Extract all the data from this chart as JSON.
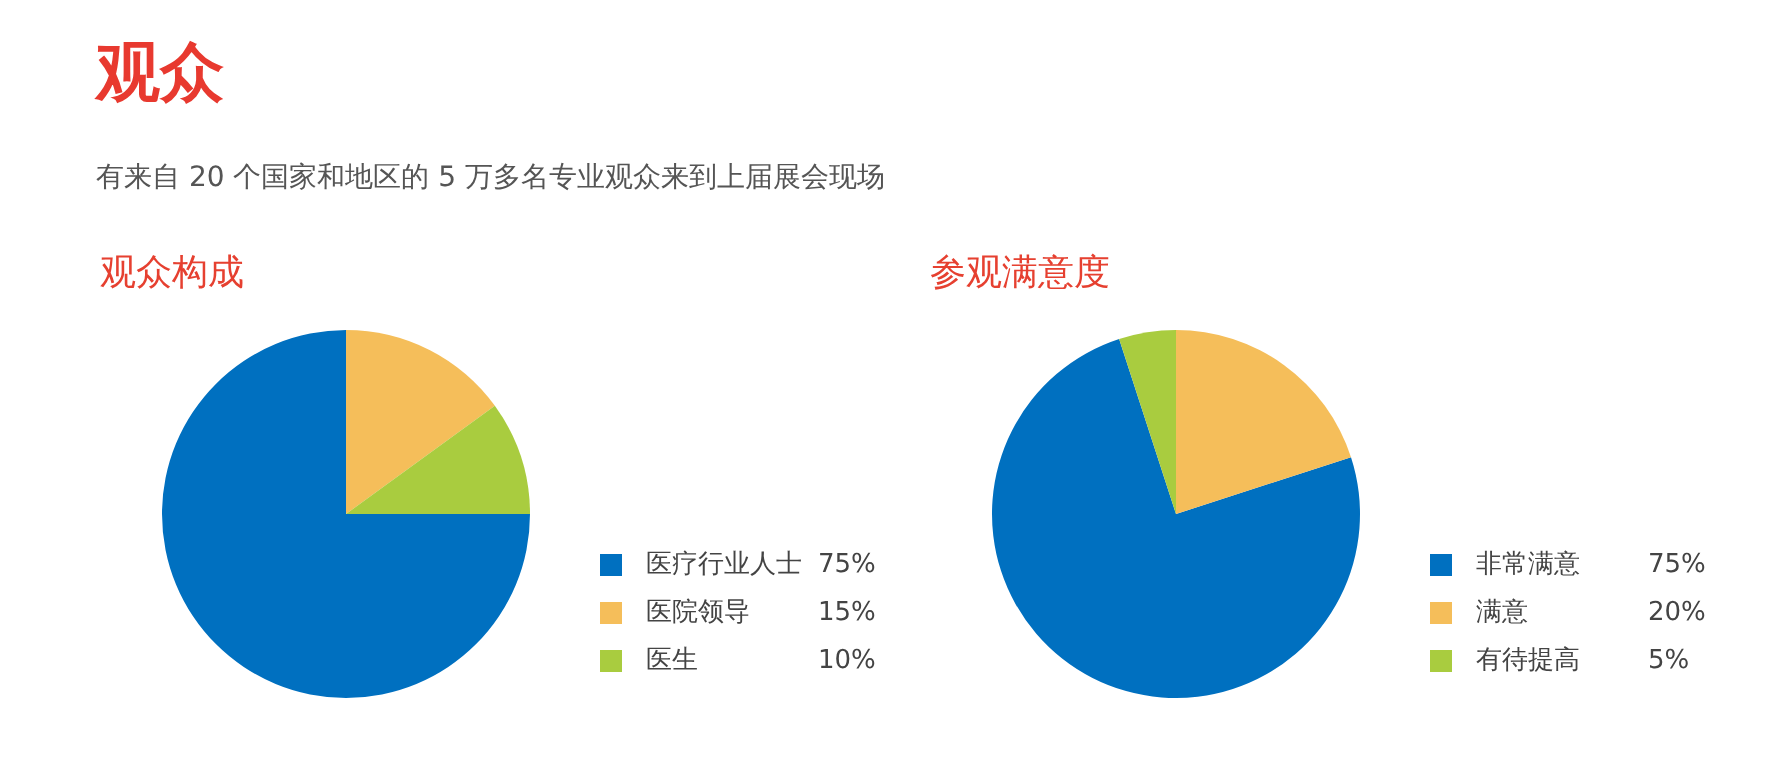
{
  "chart_data": [
    {
      "type": "other",
      "title": "观众",
      "subtitle": "有来自 20 个国家和地区的 5 万多名专业观众来到上届展会现场"
    },
    {
      "type": "pie",
      "title": "观众构成",
      "categories": [
        "医疗行业人士",
        "医院领导",
        "医生"
      ],
      "values": [
        75,
        15,
        10
      ],
      "value_labels": [
        "75%",
        "15%",
        "10%"
      ],
      "colors": [
        "#0070c0",
        "#f5be5a",
        "#a9cc3f"
      ],
      "legend": "bottom right"
    },
    {
      "type": "pie",
      "title": "参观满意度",
      "categories": [
        "非常满意",
        "满意",
        "有待提高"
      ],
      "values": [
        75,
        20,
        5
      ],
      "value_labels": [
        "75%",
        "20%",
        "5%"
      ],
      "colors": [
        "#0070c0",
        "#f5be5a",
        "#a9cc3f"
      ],
      "legend": "bottom right"
    }
  ]
}
